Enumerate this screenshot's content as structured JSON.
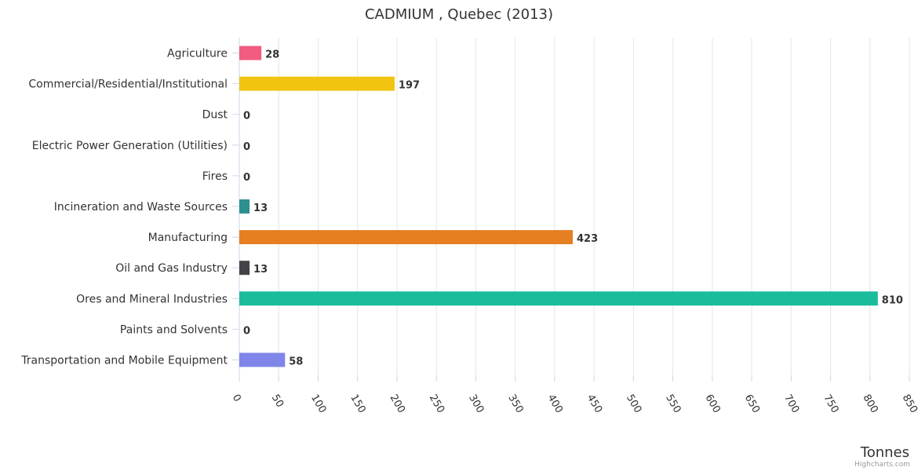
{
  "chart_data": {
    "type": "bar",
    "orientation": "horizontal",
    "title": "CADMIUM , Quebec (2013)",
    "xlabel": "Tonnes",
    "categories": [
      "Agriculture",
      "Commercial/Residential/Institutional",
      "Dust",
      "Electric Power Generation (Utilities)",
      "Fires",
      "Incineration and Waste Sources",
      "Manufacturing",
      "Oil and Gas Industry",
      "Ores and Mineral Industries",
      "Paints and Solvents",
      "Transportation and Mobile Equipment"
    ],
    "values": [
      28,
      197,
      0,
      0,
      0,
      13,
      423,
      13,
      810,
      0,
      58
    ],
    "data_labels": [
      "28",
      "197",
      "0",
      "0",
      "0",
      "13",
      "423",
      "13",
      "810",
      "0",
      "58"
    ],
    "colors": [
      "#f15c80",
      "#f1c40f",
      "#2b908f",
      "#7cb5ec",
      "#90ed7d",
      "#2b908f",
      "#e67e22",
      "#434348",
      "#1abc9c",
      "#8085e9",
      "#8085e9"
    ],
    "xlim": [
      0,
      850
    ],
    "ticks": [
      "0",
      "50",
      "100",
      "150",
      "200",
      "250",
      "300",
      "350",
      "400",
      "450",
      "500",
      "550",
      "600",
      "650",
      "700",
      "750",
      "800",
      "850"
    ],
    "grid": true,
    "legend": "none"
  },
  "credits": "Highcharts.com"
}
